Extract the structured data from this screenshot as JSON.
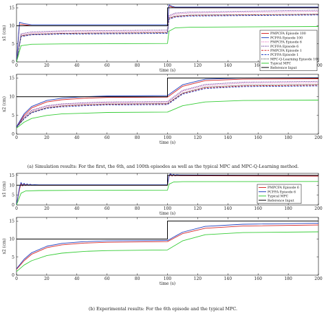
{
  "captions": {
    "a": "(a) Simulation results: For the first, the 6th, and 100th episodes as well as the typical MPC and MPC-Q-Learning method.",
    "b": "(b) Experimental results: For the 6th episode and the typical MPC."
  },
  "chart_data": [
    {
      "id": "a1",
      "type": "line",
      "ylabel": "x1 (cm)",
      "xlabel": "time (s)",
      "xlim": [
        0,
        200
      ],
      "ylim": [
        0,
        16
      ],
      "xticks": [
        0,
        20,
        40,
        60,
        80,
        100,
        120,
        140,
        160,
        180,
        200
      ],
      "yticks": [
        0,
        5,
        10,
        15
      ],
      "legend_position": "right",
      "series": [
        {
          "name": "PMPCFA Episode 100",
          "color": "#d62728",
          "dash": "",
          "x": [
            0,
            2,
            5,
            10,
            100,
            101,
            103,
            105,
            110,
            200
          ],
          "y": [
            0,
            10.5,
            10.3,
            10,
            10,
            15.5,
            15.2,
            15,
            15,
            15
          ]
        },
        {
          "name": "PCFFA Episode 100",
          "color": "#1f3fbf",
          "dash": "",
          "x": [
            0,
            2,
            5,
            10,
            100,
            101,
            103,
            105,
            110,
            200
          ],
          "y": [
            0,
            11,
            10.6,
            10.3,
            10.3,
            15.8,
            15.4,
            15.2,
            15.2,
            15.2
          ]
        },
        {
          "name": "PMPCFA Episode 6",
          "color": "#e377c2",
          "dash": "1.5,1",
          "x": [
            0,
            3,
            10,
            30,
            100,
            101,
            105,
            115,
            200
          ],
          "y": [
            0,
            7.5,
            8,
            8.3,
            8.5,
            12.5,
            13.2,
            13.5,
            14
          ]
        },
        {
          "name": "PCFFA Episode 6",
          "color": "#6a3d9a",
          "dash": "1.5,1",
          "x": [
            0,
            3,
            10,
            30,
            100,
            101,
            105,
            115,
            200
          ],
          "y": [
            0,
            7.8,
            8.3,
            8.6,
            8.8,
            12.8,
            13.5,
            13.8,
            14.3
          ]
        },
        {
          "name": "PMPCFA Episode 1",
          "color": "#d62728",
          "dash": "3,1.5",
          "x": [
            0,
            3,
            10,
            30,
            100,
            101,
            105,
            115,
            200
          ],
          "y": [
            0,
            7.2,
            7.6,
            7.9,
            8.1,
            12,
            12.6,
            12.9,
            13.2
          ]
        },
        {
          "name": "PCFFA Episode 1",
          "color": "#1f3fbf",
          "dash": "3,1.5",
          "x": [
            0,
            3,
            10,
            30,
            100,
            101,
            105,
            115,
            200
          ],
          "y": [
            0,
            7,
            7.5,
            7.7,
            7.9,
            11.8,
            12.4,
            12.7,
            13
          ]
        },
        {
          "name": "MPC-Q-Learning Episode 100",
          "color": "#3a3a3a",
          "dash": "1,1",
          "x": [
            0,
            3,
            10,
            30,
            100,
            101,
            105,
            115,
            200
          ],
          "y": [
            0,
            7.3,
            7.7,
            7.9,
            8.1,
            12.2,
            12.7,
            13,
            13.2
          ]
        },
        {
          "name": "Typical MPC",
          "color": "#33cc33",
          "dash": "",
          "x": [
            0,
            3,
            10,
            30,
            100,
            101,
            105,
            115,
            200
          ],
          "y": [
            0,
            4.5,
            4.9,
            5,
            5.1,
            8.5,
            9.4,
            9.6,
            9.8
          ]
        },
        {
          "name": "Reference Input",
          "color": "#000000",
          "dash": "",
          "x": [
            0,
            100,
            100,
            200
          ],
          "y": [
            10,
            10,
            15,
            15
          ]
        }
      ]
    },
    {
      "id": "a2",
      "type": "line",
      "ylabel": "x2 (cm)",
      "xlabel": "time (s)",
      "xlim": [
        0,
        200
      ],
      "ylim": [
        0,
        16
      ],
      "xticks": [
        0,
        20,
        40,
        60,
        80,
        100,
        120,
        140,
        160,
        180,
        200
      ],
      "yticks": [
        0,
        5,
        10,
        15
      ],
      "series": [
        {
          "name": "PMPCFA Episode 100",
          "color": "#d62728",
          "dash": "",
          "x": [
            0,
            5,
            10,
            20,
            30,
            45,
            60,
            100,
            110,
            125,
            150,
            200
          ],
          "y": [
            1.8,
            5,
            7,
            8.6,
            9.2,
            9.6,
            9.8,
            9.9,
            12.8,
            14.3,
            14.7,
            14.8
          ]
        },
        {
          "name": "PCFFA Episode 100",
          "color": "#1f3fbf",
          "dash": "",
          "x": [
            0,
            5,
            10,
            20,
            30,
            45,
            60,
            100,
            110,
            125,
            150,
            200
          ],
          "y": [
            2,
            5.4,
            7.4,
            9,
            9.6,
            10,
            10.2,
            10.3,
            13.2,
            14.7,
            15,
            15.1
          ]
        },
        {
          "name": "PMPCFA Episode 6",
          "color": "#e377c2",
          "dash": "1.5,1",
          "x": [
            0,
            5,
            10,
            20,
            30,
            45,
            60,
            100,
            110,
            125,
            150,
            200
          ],
          "y": [
            1.8,
            4.5,
            6.2,
            7.4,
            7.9,
            8.2,
            8.4,
            8.5,
            11.5,
            13,
            13.6,
            13.8
          ]
        },
        {
          "name": "PCFFA Episode 6",
          "color": "#6a3d9a",
          "dash": "1.5,1",
          "x": [
            0,
            5,
            10,
            20,
            30,
            45,
            60,
            100,
            110,
            125,
            150,
            200
          ],
          "y": [
            1.8,
            4.6,
            6.4,
            7.6,
            8.1,
            8.4,
            8.6,
            8.7,
            11.7,
            13.3,
            13.9,
            14.1
          ]
        },
        {
          "name": "PMPCFA Episode 1",
          "color": "#d62728",
          "dash": "3,1.5",
          "x": [
            0,
            5,
            10,
            20,
            30,
            45,
            60,
            100,
            110,
            125,
            150,
            200
          ],
          "y": [
            1.8,
            4.2,
            5.8,
            7,
            7.5,
            7.8,
            8,
            8.1,
            10.9,
            12.4,
            12.9,
            13.1
          ]
        },
        {
          "name": "PCFFA Episode 1",
          "color": "#1f3fbf",
          "dash": "3,1.5",
          "x": [
            0,
            5,
            10,
            20,
            30,
            45,
            60,
            100,
            110,
            125,
            150,
            200
          ],
          "y": [
            1.8,
            4.1,
            5.7,
            6.9,
            7.3,
            7.6,
            7.8,
            7.9,
            10.7,
            12.2,
            12.7,
            12.9
          ]
        },
        {
          "name": "MPC-Q-Learning Episode 100",
          "color": "#3a3a3a",
          "dash": "1,1",
          "x": [
            0,
            5,
            10,
            20,
            30,
            45,
            60,
            100,
            110,
            125,
            150,
            200
          ],
          "y": [
            1.8,
            4.2,
            5.9,
            7.1,
            7.6,
            7.9,
            8.1,
            8.2,
            11,
            12.6,
            13.1,
            13.3
          ]
        },
        {
          "name": "Typical MPC",
          "color": "#33cc33",
          "dash": "",
          "x": [
            0,
            5,
            10,
            20,
            30,
            45,
            60,
            100,
            110,
            125,
            150,
            200
          ],
          "y": [
            1.6,
            3.2,
            4.2,
            5,
            5.4,
            5.6,
            5.8,
            5.9,
            7.6,
            8.6,
            9,
            9.1
          ]
        },
        {
          "name": "Reference Input",
          "color": "#000000",
          "dash": "",
          "x": [
            0,
            100,
            100,
            200
          ],
          "y": [
            10,
            10,
            15,
            15
          ]
        }
      ]
    },
    {
      "id": "b1",
      "type": "line",
      "ylabel": "x1 (cm)",
      "xlabel": "time (s)",
      "xlim": [
        0,
        200
      ],
      "ylim": [
        0,
        16
      ],
      "xticks": [
        0,
        20,
        40,
        60,
        80,
        100,
        120,
        140,
        160,
        180,
        200
      ],
      "yticks": [
        0,
        5,
        10,
        15
      ],
      "legend_position": "right",
      "series": [
        {
          "name": "PMPCFA Episode 6",
          "color": "#d62728",
          "dash": "",
          "x": [
            0,
            2,
            3,
            4,
            5,
            6,
            7,
            8,
            9,
            10,
            12,
            15,
            100,
            101,
            102,
            103,
            104,
            105,
            106,
            108,
            110,
            200
          ],
          "y": [
            0,
            8,
            10.8,
            9.6,
            10.6,
            9.8,
            10.4,
            9.9,
            10.2,
            10,
            10.1,
            10,
            10,
            14.5,
            15.4,
            14.6,
            15.1,
            14.7,
            14.9,
            14.8,
            14.8,
            14.6
          ]
        },
        {
          "name": "PCFFA Episode 6",
          "color": "#1f3fbf",
          "dash": "",
          "x": [
            0,
            2,
            3,
            4,
            5,
            6,
            7,
            8,
            9,
            10,
            12,
            15,
            100,
            101,
            102,
            103,
            104,
            105,
            106,
            108,
            110,
            200
          ],
          "y": [
            0,
            9,
            11.4,
            10,
            11,
            10.1,
            10.7,
            10.1,
            10.5,
            10.2,
            10.3,
            10.2,
            10.2,
            15,
            15.8,
            15,
            15.5,
            15.1,
            15.3,
            15.2,
            15.2,
            15
          ]
        },
        {
          "name": "Typical MPC",
          "color": "#33cc33",
          "dash": "",
          "x": [
            0,
            3,
            6,
            15,
            40,
            100,
            101,
            104,
            110,
            200
          ],
          "y": [
            0,
            6,
            7.1,
            7.3,
            7.4,
            7.5,
            10.5,
            11.6,
            11.8,
            11.9
          ]
        },
        {
          "name": "Reference Input",
          "color": "#000000",
          "dash": "",
          "x": [
            0,
            100,
            100,
            200
          ],
          "y": [
            10,
            10,
            15,
            15
          ]
        }
      ]
    },
    {
      "id": "b2",
      "type": "line",
      "ylabel": "x2 (cm)",
      "xlabel": "time (s)",
      "xlim": [
        0,
        200
      ],
      "ylim": [
        0,
        16
      ],
      "xticks": [
        0,
        20,
        40,
        60,
        80,
        100,
        120,
        140,
        160,
        180,
        200
      ],
      "yticks": [
        0,
        5,
        10,
        15
      ],
      "series": [
        {
          "name": "PMPCFA Episode 6",
          "color": "#d62728",
          "dash": "",
          "x": [
            0,
            5,
            10,
            20,
            30,
            45,
            60,
            100,
            110,
            125,
            150,
            200
          ],
          "y": [
            1.6,
            4,
            5.8,
            7.6,
            8.4,
            8.9,
            9.1,
            9.3,
            11.5,
            13,
            13.6,
            13.9
          ]
        },
        {
          "name": "PCFFA Episode 6",
          "color": "#1f3fbf",
          "dash": "",
          "x": [
            0,
            5,
            10,
            20,
            30,
            45,
            60,
            100,
            110,
            125,
            150,
            200
          ],
          "y": [
            1.8,
            4.4,
            6.2,
            8,
            8.8,
            9.3,
            9.5,
            9.6,
            11.9,
            13.5,
            14.1,
            14.4
          ]
        },
        {
          "name": "Typical MPC",
          "color": "#33cc33",
          "dash": "",
          "x": [
            0,
            5,
            10,
            20,
            30,
            45,
            60,
            100,
            110,
            125,
            150,
            200
          ],
          "y": [
            1,
            2.8,
            4,
            5.4,
            6.1,
            6.6,
            6.8,
            7,
            9.5,
            11.2,
            11.8,
            12
          ]
        },
        {
          "name": "Reference Input",
          "color": "#000000",
          "dash": "",
          "x": [
            0,
            100,
            100,
            200
          ],
          "y": [
            10,
            10,
            15,
            15
          ]
        }
      ]
    }
  ]
}
